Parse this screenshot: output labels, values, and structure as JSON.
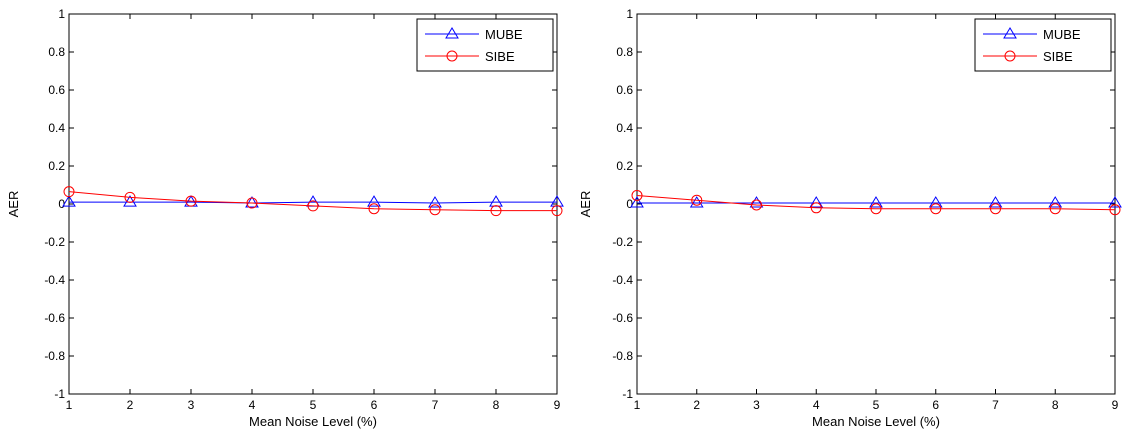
{
  "chart_data": [
    {
      "type": "line",
      "title": "",
      "xlabel": "Mean Noise Level (%)",
      "ylabel": "AER",
      "xlim": [
        1,
        9
      ],
      "ylim": [
        -1,
        1
      ],
      "x": [
        1,
        2,
        3,
        4,
        5,
        6,
        7,
        8,
        9
      ],
      "x_ticks": [
        "1",
        "2",
        "3",
        "4",
        "5",
        "6",
        "7",
        "8",
        "9"
      ],
      "y_ticks": [
        "-1",
        "-0.8",
        "-0.6",
        "-0.4",
        "-0.2",
        "0",
        "0.2",
        "0.4",
        "0.6",
        "0.8",
        "1"
      ],
      "grid": false,
      "legend": "top-right",
      "series": [
        {
          "name": "MUBE",
          "color": "#0000ff",
          "marker": "triangle",
          "values": [
            0.01,
            0.01,
            0.01,
            0.005,
            0.01,
            0.01,
            0.005,
            0.01,
            0.01
          ]
        },
        {
          "name": "SIBE",
          "color": "#ff0000",
          "marker": "circle",
          "values": [
            0.065,
            0.035,
            0.015,
            0.005,
            -0.01,
            -0.025,
            -0.03,
            -0.035,
            -0.035
          ]
        }
      ]
    },
    {
      "type": "line",
      "title": "",
      "xlabel": "Mean Noise Level (%)",
      "ylabel": "AER",
      "xlim": [
        1,
        9
      ],
      "ylim": [
        -1,
        1
      ],
      "x": [
        1,
        2,
        3,
        4,
        5,
        6,
        7,
        8,
        9
      ],
      "x_ticks": [
        "1",
        "2",
        "3",
        "4",
        "5",
        "6",
        "7",
        "8",
        "9"
      ],
      "y_ticks": [
        "-1",
        "-0.8",
        "-0.6",
        "-0.4",
        "-0.2",
        "0",
        "0.2",
        "0.4",
        "0.6",
        "0.8",
        "1"
      ],
      "grid": false,
      "legend": "top-right",
      "series": [
        {
          "name": "MUBE",
          "color": "#0000ff",
          "marker": "triangle",
          "values": [
            0.005,
            0.005,
            0.005,
            0.005,
            0.005,
            0.005,
            0.005,
            0.005,
            0.005
          ]
        },
        {
          "name": "SIBE",
          "color": "#ff0000",
          "marker": "circle",
          "values": [
            0.045,
            0.02,
            -0.005,
            -0.02,
            -0.025,
            -0.025,
            -0.025,
            -0.025,
            -0.03
          ]
        }
      ]
    }
  ]
}
